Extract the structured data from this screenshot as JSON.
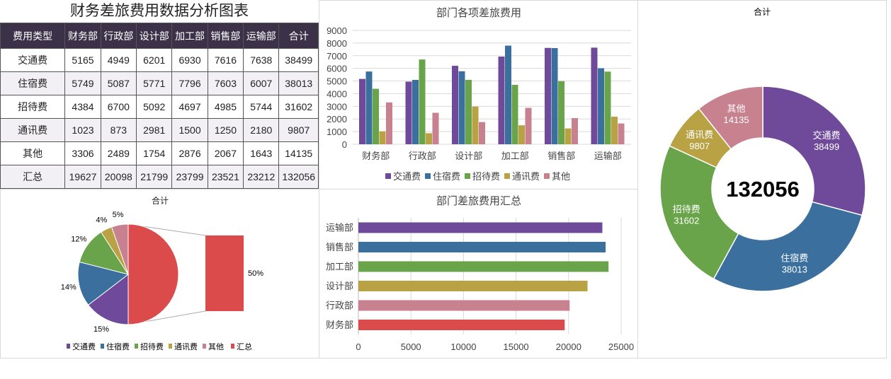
{
  "title": "财务差旅费用数据分析图表",
  "table": {
    "headers": [
      "费用类型",
      "财务部",
      "行政部",
      "设计部",
      "加工部",
      "销售部",
      "运输部",
      "合计"
    ],
    "rows": [
      [
        "交通费",
        "5165",
        "4949",
        "6201",
        "6930",
        "7616",
        "7638",
        "38499"
      ],
      [
        "住宿费",
        "5749",
        "5087",
        "5771",
        "7796",
        "7603",
        "6007",
        "38013"
      ],
      [
        "招待费",
        "4384",
        "6700",
        "5092",
        "4697",
        "4985",
        "5744",
        "31602"
      ],
      [
        "通讯费",
        "1023",
        "873",
        "2981",
        "1500",
        "1250",
        "2180",
        "9807"
      ],
      [
        "其他",
        "3306",
        "2489",
        "1754",
        "2876",
        "2067",
        "1643",
        "14135"
      ],
      [
        "汇总",
        "19627",
        "20098",
        "21799",
        "23799",
        "23521",
        "23212",
        "132056"
      ]
    ]
  },
  "colors": {
    "交通费": "#6f4a9a",
    "住宿费": "#3b709e",
    "招待费": "#6aa44a",
    "通讯费": "#b8a244",
    "其他": "#c7818f",
    "汇总": "#dc4b4b"
  },
  "chart_data": [
    {
      "type": "bar",
      "title": "部门各项差旅费用",
      "categories": [
        "财务部",
        "行政部",
        "设计部",
        "加工部",
        "销售部",
        "运输部"
      ],
      "ylim": [
        0,
        9000
      ],
      "yticks": [
        "0",
        "1000",
        "2000",
        "3000",
        "4000",
        "5000",
        "6000",
        "7000",
        "8000",
        "9000"
      ],
      "grid": true,
      "legend": "bottom",
      "series": [
        {
          "name": "交通费",
          "values": [
            5165,
            4949,
            6201,
            6930,
            7616,
            7638
          ]
        },
        {
          "name": "住宿费",
          "values": [
            5749,
            5087,
            5771,
            7796,
            7603,
            6007
          ]
        },
        {
          "name": "招待费",
          "values": [
            4384,
            6700,
            5092,
            4697,
            4985,
            5744
          ]
        },
        {
          "name": "通讯费",
          "values": [
            1023,
            873,
            2981,
            1500,
            1250,
            2180
          ]
        },
        {
          "name": "其他",
          "values": [
            3306,
            2489,
            1754,
            2876,
            2067,
            1643
          ]
        }
      ]
    },
    {
      "type": "bar",
      "orientation": "horizontal",
      "title": "部门差旅费用汇总",
      "categories": [
        "运输部",
        "销售部",
        "加工部",
        "设计部",
        "行政部",
        "财务部"
      ],
      "values": [
        23212,
        23521,
        23799,
        21799,
        20098,
        19627
      ],
      "xlim": [
        0,
        25000
      ],
      "xticks": [
        "0",
        "5000",
        "10000",
        "15000",
        "20000",
        "25000"
      ],
      "grid": true
    },
    {
      "type": "pie",
      "subtype": "pie-of-pie",
      "title": "合计",
      "legend": "bottom",
      "categories": [
        "汇总",
        "交通费",
        "住宿费",
        "招待费",
        "通讯费",
        "其他"
      ],
      "values": [
        132056,
        38499,
        38013,
        31602,
        9807,
        14135
      ],
      "labels": [
        "50%",
        "15%",
        "14%",
        "12%",
        "4%",
        "5%"
      ],
      "legend_order": [
        "交通费",
        "住宿费",
        "招待费",
        "通讯费",
        "其他",
        "汇总"
      ]
    },
    {
      "type": "pie",
      "subtype": "donut",
      "title": "合计",
      "center_label": "132056",
      "categories": [
        "交通费",
        "住宿费",
        "招待费",
        "通讯费",
        "其他"
      ],
      "values": [
        38499,
        38013,
        31602,
        9807,
        14135
      ]
    }
  ]
}
